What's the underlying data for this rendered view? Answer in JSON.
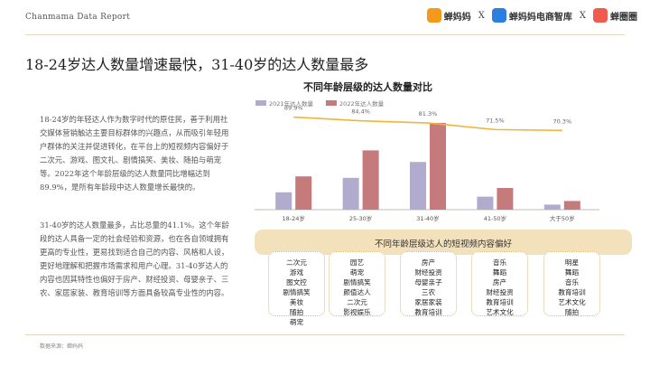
{
  "header": {
    "report": "Chanmama Data Report",
    "brands": [
      {
        "name": "蝉妈妈",
        "icon": "chanmama-logo-icon",
        "color": "#f39a1d"
      },
      {
        "name": "蝉妈妈电商智库",
        "icon": "chanmama-think-tank-logo-icon",
        "color": "#2b7fe0"
      },
      {
        "name": "蝉圈圈",
        "icon": "chanquanquan-logo-icon",
        "color": "#ef5b4c"
      }
    ],
    "separator": "X"
  },
  "page_title": "18-24岁达人数量增速最快，31-40岁的达人数量最多",
  "paragraphs": [
    "18-24岁的年轻达人作为数字时代的原住民，善于利用社交媒体营销触达主要目标群体的兴趣点，从而吸引年轻用户群体的关注并促进转化，在平台上的短视频内容偏好于二次元、游戏、图文礼、剧情搞笑、美妆、随拍与萌宠等。2022年这个年龄层级的达人数量同比增幅达到89.9%，是所有年龄段中达人数量增长最快的。",
    "31-40岁的达人数量最多，占比总量的41.1%。这个年龄段的达人具备一定的社会经验和资源，也在各自领域拥有更高的专业性，更易找到适合自己的内容、风格和人设，更好地理解和把握市场需求和用户心理。31-40岁达人的内容也因其特性也偏好于房产、财经投资、母婴亲子、三农、家居家装、教育培训等方面具备较高专业性的内容。"
  ],
  "chart_data": {
    "type": "bar",
    "title": "不同年龄层级的达人数量对比",
    "categories": [
      "18-24岁",
      "25-30岁",
      "31-40岁",
      "41-50岁",
      "大于50岁"
    ],
    "series": [
      {
        "name": "2021年达人数量",
        "color": "#b1acce",
        "values": [
          12,
          22,
          33,
          9,
          3.5
        ]
      },
      {
        "name": "2022年达人数量",
        "color": "#c57a7c",
        "values": [
          23,
          41,
          60,
          15,
          6
        ]
      }
    ],
    "line": {
      "labels": [
        "89.9%",
        "84.4%",
        "81.3%",
        "71.5%",
        "70.3%"
      ],
      "values": [
        89.9,
        84.4,
        81.3,
        71.5,
        70.3
      ],
      "color": "#f2b43c"
    },
    "ylim": [
      0,
      65
    ],
    "line_ylim": [
      60,
      92
    ],
    "legend_position": "top-left",
    "grid": false
  },
  "preferences": {
    "title": "不同年龄层级达人的短视频内容偏好",
    "columns": [
      [
        "二次元",
        "游戏",
        "图文控",
        "剧情搞笑",
        "美妆",
        "随拍",
        "萌宠"
      ],
      [
        "园艺",
        "萌宠",
        "剧情搞笑",
        "颜值达人",
        "二次元",
        "影视娱乐"
      ],
      [
        "房产",
        "财经投资",
        "母婴亲子",
        "三农",
        "家居家装",
        "教育培训"
      ],
      [
        "音乐",
        "舞蹈",
        "房产",
        "财经投资",
        "教育培训",
        "艺术文化"
      ],
      [
        "明星",
        "舞蹈",
        "音乐",
        "教育培训",
        "艺术文化",
        "随拍"
      ]
    ]
  },
  "source": "数据来源：蝉妈妈"
}
